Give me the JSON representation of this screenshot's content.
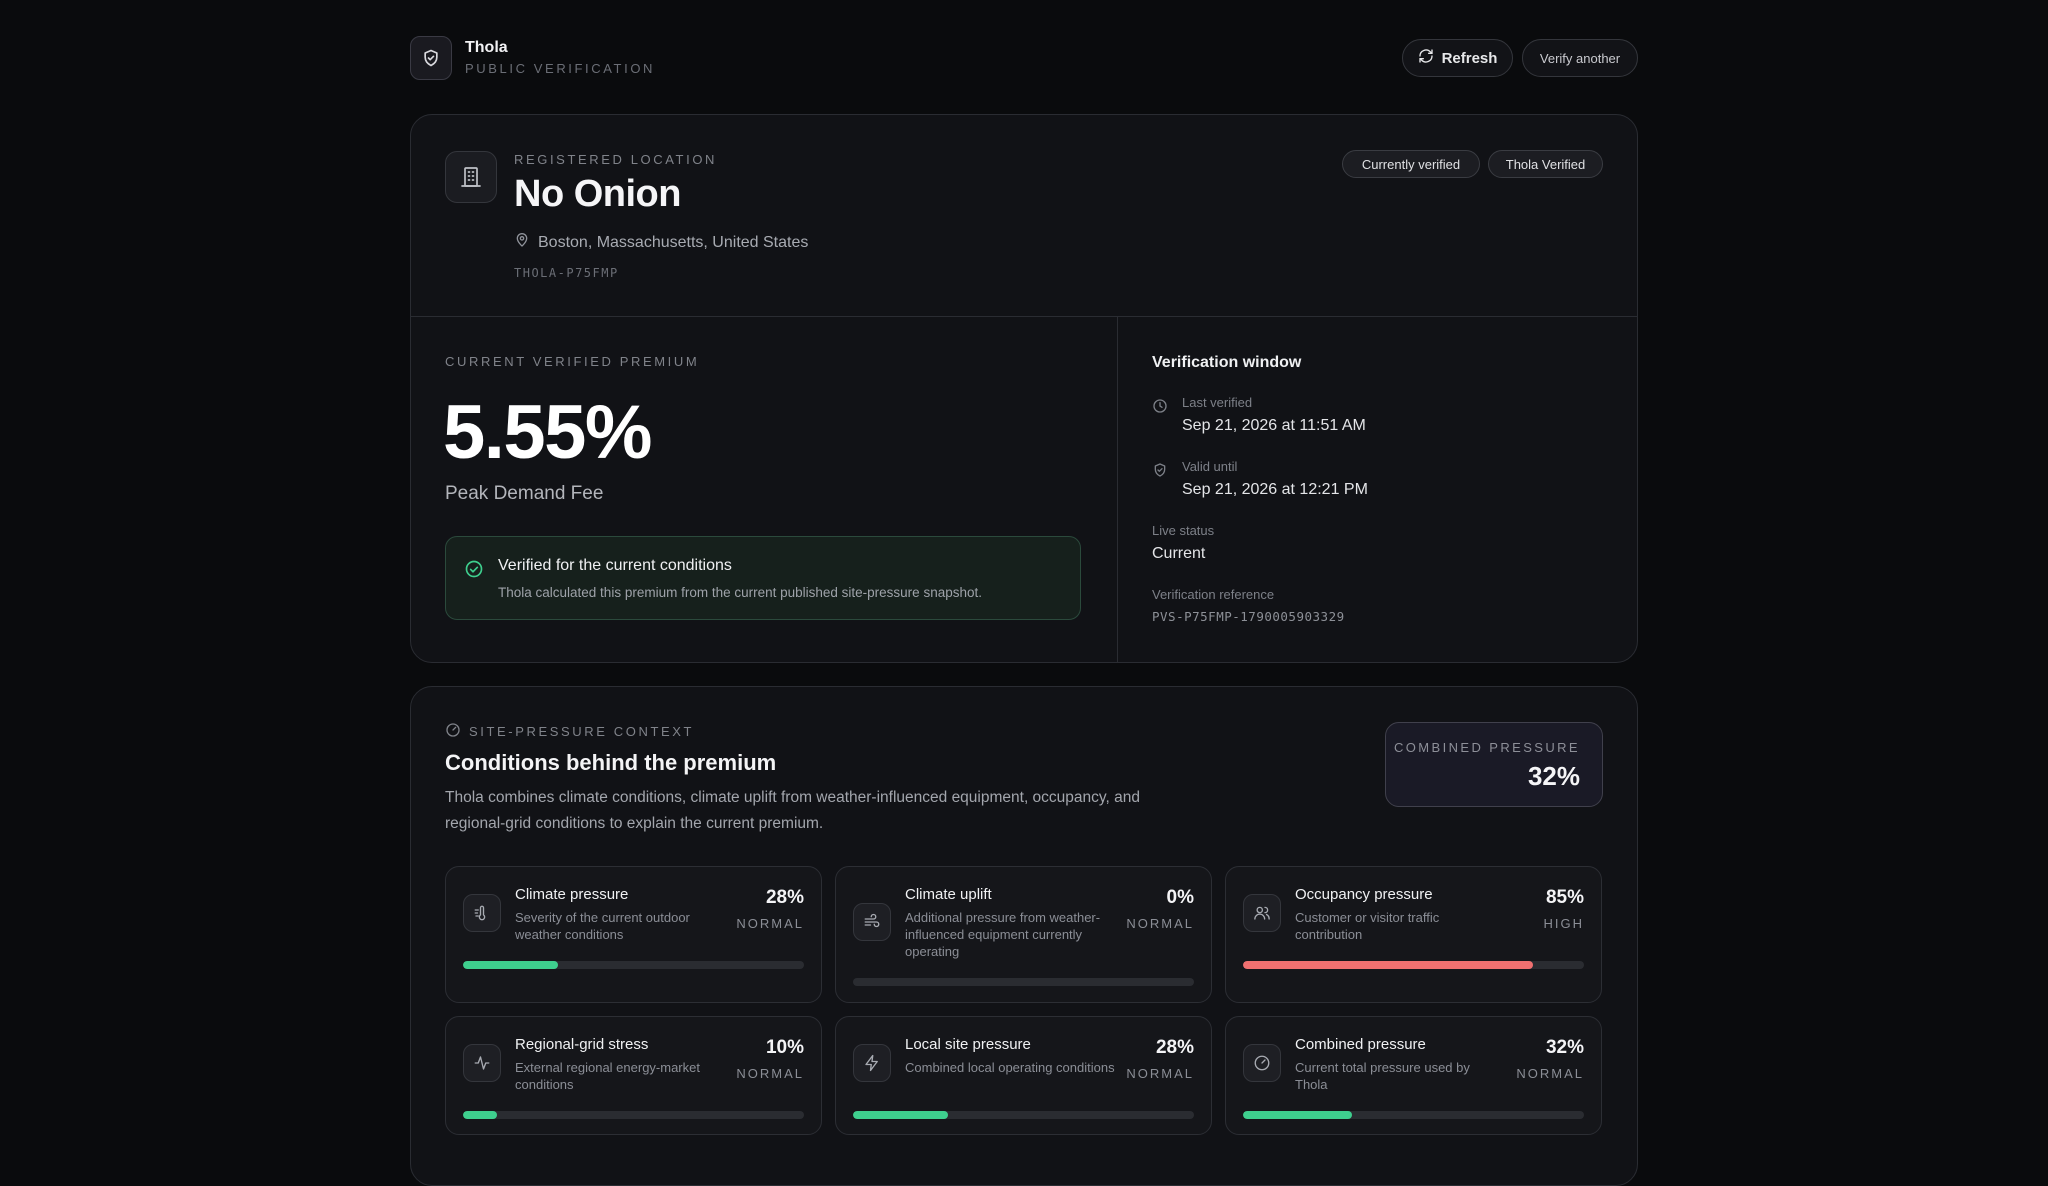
{
  "header": {
    "brand_name": "Thola",
    "brand_sub": "PUBLIC VERIFICATION",
    "refresh_label": "Refresh",
    "verify_label": "Verify another"
  },
  "location": {
    "eyebrow": "REGISTERED LOCATION",
    "name": "No Onion",
    "place": "Boston, Massachusetts, United States",
    "id": "THOLA-P75FMP",
    "badges": [
      "Currently verified",
      "Thola Verified"
    ]
  },
  "premium": {
    "eyebrow": "CURRENT VERIFIED PREMIUM",
    "value": "5.55%",
    "label": "Peak Demand Fee",
    "notice_title": "Verified for the current conditions",
    "notice_text": "Thola calculated this premium from the current published site-pressure snapshot."
  },
  "window": {
    "title": "Verification window",
    "last_verified_label": "Last verified",
    "last_verified_value": "Sep 21, 2026 at 11:51 AM",
    "valid_until_label": "Valid until",
    "valid_until_value": "Sep 21, 2026 at 12:21 PM",
    "live_status_label": "Live status",
    "live_status_value": "Current",
    "reference_label": "Verification reference",
    "reference_value": "PVS-P75FMP-1790005903329"
  },
  "context": {
    "eyebrow": "SITE-PRESSURE CONTEXT",
    "title": "Conditions behind the premium",
    "description": "Thola combines climate conditions, climate uplift from weather-influenced equipment, occupancy, and regional-grid conditions to explain the current premium.",
    "combined_label": "COMBINED PRESSURE",
    "combined_value": "32%"
  },
  "metrics": [
    {
      "name": "Climate pressure",
      "description": "Severity of the current outdoor weather conditions",
      "value": "28%",
      "status": "NORMAL",
      "level": 0.28,
      "color": "#3ecf8e",
      "icon": "thermometer-wind-icon"
    },
    {
      "name": "Climate uplift",
      "description": "Additional pressure from weather-influenced equipment currently operating",
      "value": "0%",
      "status": "NORMAL",
      "level": 0.0,
      "color": "#3ecf8e",
      "icon": "wind-icon"
    },
    {
      "name": "Occupancy pressure",
      "description": "Customer or visitor traffic contribution",
      "value": "85%",
      "status": "HIGH",
      "level": 0.85,
      "color": "#f07070",
      "icon": "users-icon"
    },
    {
      "name": "Regional-grid stress",
      "description": "External regional energy-market conditions",
      "value": "10%",
      "status": "NORMAL",
      "level": 0.1,
      "color": "#3ecf8e",
      "icon": "activity-icon"
    },
    {
      "name": "Local site pressure",
      "description": "Combined local operating conditions",
      "value": "28%",
      "status": "NORMAL",
      "level": 0.28,
      "color": "#3ecf8e",
      "icon": "bolt-icon"
    },
    {
      "name": "Combined pressure",
      "description": "Current total pressure used by Thola",
      "value": "32%",
      "status": "NORMAL",
      "level": 0.32,
      "color": "#3ecf8e",
      "icon": "gauge-icon"
    }
  ]
}
